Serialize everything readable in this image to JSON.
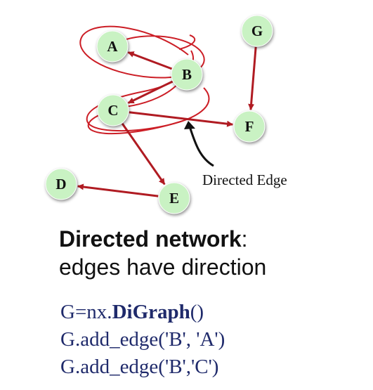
{
  "nodes": [
    {
      "id": "A",
      "label": "A"
    },
    {
      "id": "B",
      "label": "B"
    },
    {
      "id": "C",
      "label": "C"
    },
    {
      "id": "D",
      "label": "D"
    },
    {
      "id": "E",
      "label": "E"
    },
    {
      "id": "F",
      "label": "F"
    },
    {
      "id": "G",
      "label": "G"
    }
  ],
  "edges": [
    {
      "from": "B",
      "to": "A"
    },
    {
      "from": "B",
      "to": "C"
    },
    {
      "from": "C",
      "to": "F"
    },
    {
      "from": "C",
      "to": "E"
    },
    {
      "from": "E",
      "to": "D"
    },
    {
      "from": "G",
      "to": "F"
    }
  ],
  "annotation": {
    "label": "Directed Edge"
  },
  "colors": {
    "node_fill": "#c9f2c3",
    "edge": "#b01b22",
    "scribble": "#cc1e26",
    "code_text": "#1f2a6b"
  },
  "heading": {
    "bold_part": "Directed network",
    "colon": ":",
    "line2": "edges have direction"
  },
  "code": {
    "line1_prefix": "G=nx.",
    "line1_bold": "DiGraph",
    "line1_suffix": "()",
    "line2": "G.add_edge('B', 'A')",
    "line3": "G.add_edge('B','C')"
  }
}
